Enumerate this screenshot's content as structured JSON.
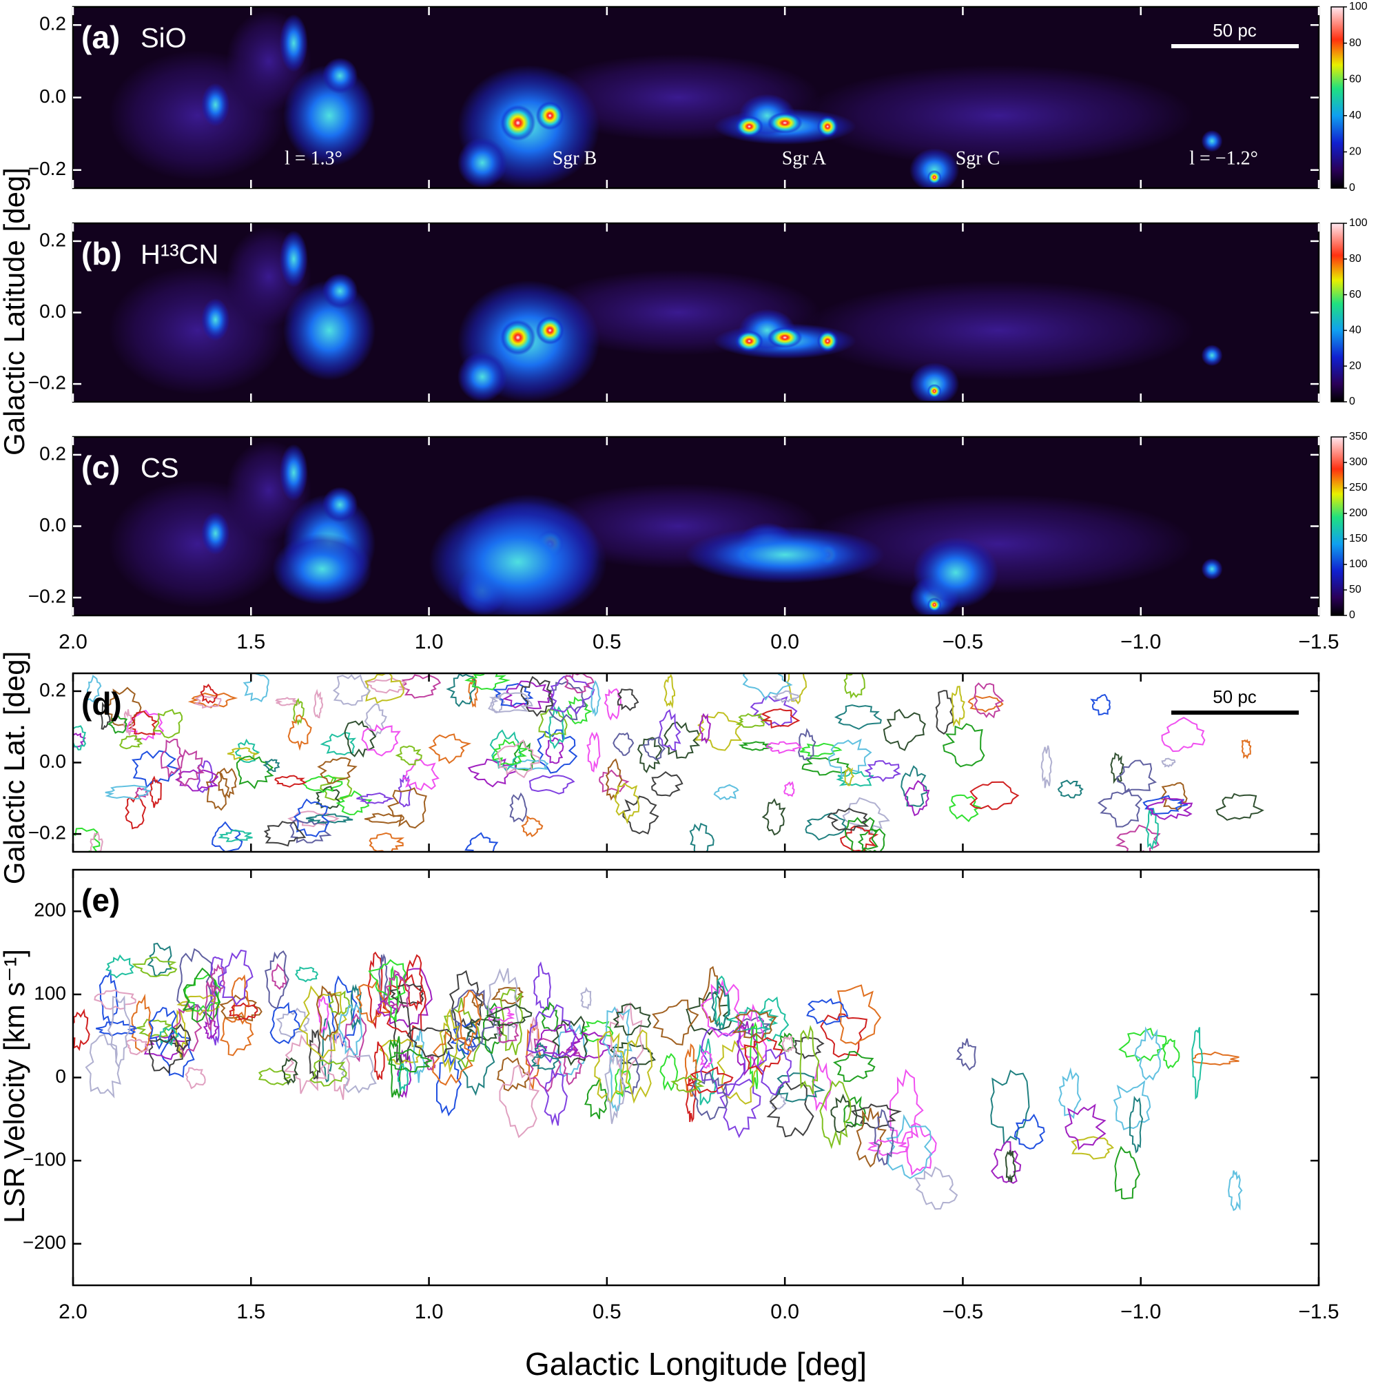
{
  "chart_data": [
    {
      "type": "heatmap",
      "panel_label": "(a)",
      "tracer": "SiO",
      "xlim": [
        2.0,
        -1.5
      ],
      "xticks": [
        {
          "value": 2,
          "label": "2.0"
        },
        {
          "value": 1.5,
          "label": "1.5"
        },
        {
          "value": 1,
          "label": "1.0"
        },
        {
          "value": 0.5,
          "label": "0.5"
        },
        {
          "value": 0,
          "label": "0.0"
        },
        {
          "value": -0.5,
          "label": "−0.5"
        },
        {
          "value": -1,
          "label": "−1.0"
        },
        {
          "value": -1.5,
          "label": "−1.5"
        }
      ],
      "show_xticklabels": false,
      "ylim": [
        -0.25,
        0.25
      ],
      "yticks": [
        {
          "value": -0.2,
          "label": "−0.2"
        },
        {
          "value": 0,
          "label": "0.0"
        },
        {
          "value": 0.2,
          "label": "0.2"
        }
      ],
      "colorbar": {
        "lim": [
          0,
          100
        ],
        "ticks": [
          0,
          20,
          40,
          60,
          80,
          100
        ]
      },
      "scale_bar": "50 pc",
      "annotations": [
        "l = 1.3°",
        "Sgr B",
        "Sgr A",
        "Sgr C",
        "l = −1.2°"
      ]
    },
    {
      "type": "heatmap",
      "panel_label": "(b)",
      "tracer": "H¹³CN",
      "xlim": [
        2.0,
        -1.5
      ],
      "xticks": [
        {
          "value": 2,
          "label": "2.0"
        },
        {
          "value": 1.5,
          "label": "1.5"
        },
        {
          "value": 1,
          "label": "1.0"
        },
        {
          "value": 0.5,
          "label": "0.5"
        },
        {
          "value": 0,
          "label": "0.0"
        },
        {
          "value": -0.5,
          "label": "−0.5"
        },
        {
          "value": -1,
          "label": "−1.0"
        },
        {
          "value": -1.5,
          "label": "−1.5"
        }
      ],
      "show_xticklabels": false,
      "ylim": [
        -0.25,
        0.25
      ],
      "yticks": [
        {
          "value": -0.2,
          "label": "−0.2"
        },
        {
          "value": 0,
          "label": "0.0"
        },
        {
          "value": 0.2,
          "label": "0.2"
        }
      ],
      "colorbar": {
        "lim": [
          0,
          100
        ],
        "ticks": [
          0,
          20,
          40,
          60,
          80,
          100
        ]
      },
      "ylabel": "Galactic Latitude [deg]"
    },
    {
      "type": "heatmap",
      "panel_label": "(c)",
      "tracer": "CS",
      "xlim": [
        2.0,
        -1.5
      ],
      "xticks": [
        {
          "value": 2,
          "label": "2.0"
        },
        {
          "value": 1.5,
          "label": "1.5"
        },
        {
          "value": 1,
          "label": "1.0"
        },
        {
          "value": 0.5,
          "label": "0.5"
        },
        {
          "value": 0,
          "label": "0.0"
        },
        {
          "value": -0.5,
          "label": "−0.5"
        },
        {
          "value": -1,
          "label": "−1.0"
        },
        {
          "value": -1.5,
          "label": "−1.5"
        }
      ],
      "show_xticklabels": true,
      "ylim": [
        -0.25,
        0.25
      ],
      "yticks": [
        {
          "value": -0.2,
          "label": "−0.2"
        },
        {
          "value": 0,
          "label": "0.0"
        },
        {
          "value": 0.2,
          "label": "0.2"
        }
      ],
      "colorbar": {
        "lim": [
          0,
          350
        ],
        "ticks": [
          0,
          50,
          100,
          150,
          200,
          250,
          300,
          350
        ]
      }
    },
    {
      "type": "contour",
      "panel_label": "(d)",
      "xlim": [
        2.0,
        -1.5
      ],
      "xticks": [
        {
          "value": 2,
          "label": "2.0"
        },
        {
          "value": 1.5,
          "label": "1.5"
        },
        {
          "value": 1,
          "label": "1.0"
        },
        {
          "value": 0.5,
          "label": "0.5"
        },
        {
          "value": 0,
          "label": "0.0"
        },
        {
          "value": -0.5,
          "label": "−0.5"
        },
        {
          "value": -1,
          "label": "−1.0"
        },
        {
          "value": -1.5,
          "label": "−1.5"
        }
      ],
      "show_xticklabels": false,
      "ylim": [
        -0.25,
        0.25
      ],
      "yticks": [
        {
          "value": -0.2,
          "label": "−0.2"
        },
        {
          "value": 0,
          "label": "0.0"
        },
        {
          "value": 0.2,
          "label": "0.2"
        }
      ],
      "scale_bar": "50 pc",
      "ylabel": "Galactic Lat. [deg]"
    },
    {
      "type": "contour",
      "panel_label": "(e)",
      "xlim": [
        2.0,
        -1.5
      ],
      "xticks": [
        {
          "value": 2,
          "label": "2.0"
        },
        {
          "value": 1.5,
          "label": "1.5"
        },
        {
          "value": 1,
          "label": "1.0"
        },
        {
          "value": 0.5,
          "label": "0.5"
        },
        {
          "value": 0,
          "label": "0.0"
        },
        {
          "value": -0.5,
          "label": "−0.5"
        },
        {
          "value": -1,
          "label": "−1.0"
        },
        {
          "value": -1.5,
          "label": "−1.5"
        }
      ],
      "show_xticklabels": true,
      "ylim": [
        -250,
        250
      ],
      "yticks": [
        {
          "value": -200,
          "label": "−200"
        },
        {
          "value": -100,
          "label": "−100"
        },
        0,
        100,
        200
      ],
      "ylabel": "LSR Velocity [km s⁻¹]",
      "xlabel": "Galactic Longitude [deg]"
    }
  ]
}
